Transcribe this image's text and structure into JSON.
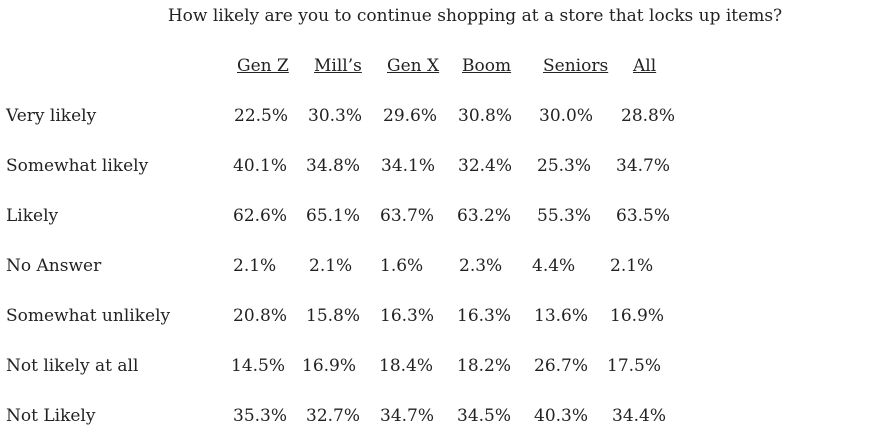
{
  "title": "How likely are you to continue shopping at a store that locks up items?",
  "columns": [
    "Gen Z",
    "Mill’s",
    "Gen X",
    "Boom",
    "Seniors",
    "All"
  ],
  "rows": [
    {
      "label": "Very likely",
      "values": [
        "22.5%",
        "30.3%",
        "29.6%",
        "30.8%",
        "30.0%",
        "28.8%"
      ]
    },
    {
      "label": "Somewhat likely",
      "values": [
        "40.1%",
        "34.8%",
        "34.1%",
        "32.4%",
        "25.3%",
        "34.7%"
      ]
    },
    {
      "label": "Likely",
      "values": [
        "62.6%",
        "65.1%",
        "63.7%",
        "63.2%",
        "55.3%",
        "63.5%"
      ]
    },
    {
      "label": "No Answer",
      "values": [
        "2.1%",
        "2.1%",
        "1.6%",
        "2.3%",
        "4.4%",
        "2.1%"
      ]
    },
    {
      "label": "Somewhat unlikely",
      "values": [
        "20.8%",
        "15.8%",
        "16.3%",
        "16.3%",
        "13.6%",
        "16.9%"
      ]
    },
    {
      "label": "Not likely at all",
      "values": [
        "14.5%",
        "16.9%",
        "18.4%",
        "18.2%",
        "26.7%",
        "17.5%"
      ]
    },
    {
      "label": "Not Likely",
      "values": [
        "35.3%",
        "32.7%",
        "34.7%",
        "34.5%",
        "40.3%",
        "34.4%"
      ]
    }
  ]
}
